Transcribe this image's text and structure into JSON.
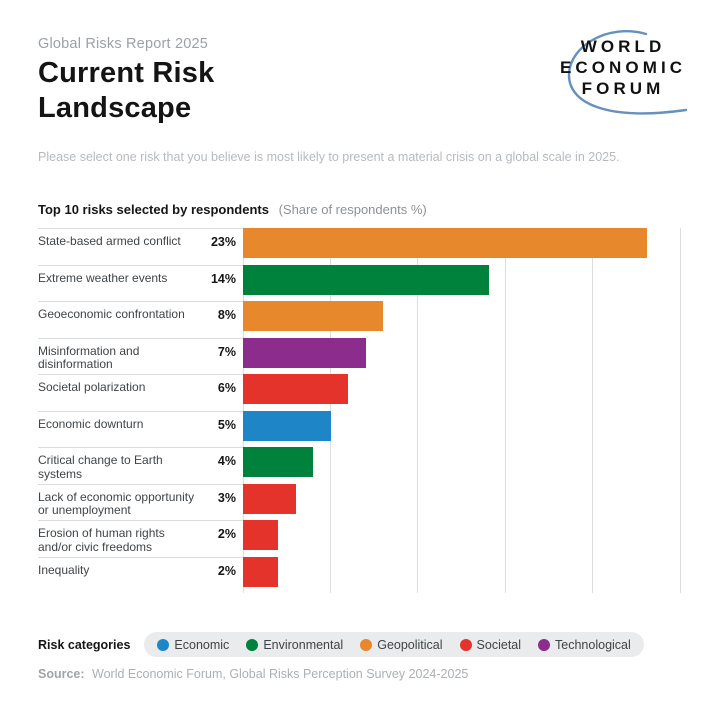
{
  "page": {
    "eyebrow": "Global Risks Report 2025",
    "title_line1": "Current Risk",
    "title_line2": "Landscape",
    "subtitle": "Please select one risk that you believe is most likely to present a material crisis on a global scale in 2025.",
    "logo": {
      "line1": "WORLD",
      "line2": "ECONOMIC",
      "line3": "FORUM",
      "arc_color": "#5585B5"
    },
    "source_label": "Source:",
    "source_text": "World Economic Forum, Global Risks Perception Survey 2024-2025"
  },
  "chart_header": {
    "title": "Top 10 risks selected by respondents",
    "subtitle": "(Share of respondents %)"
  },
  "legend": {
    "label": "Risk categories",
    "items": [
      {
        "name": "Economic",
        "color": "#1E86C6"
      },
      {
        "name": "Environmental",
        "color": "#00823C"
      },
      {
        "name": "Geopolitical",
        "color": "#E8882D"
      },
      {
        "name": "Societal",
        "color": "#E3332A"
      },
      {
        "name": "Technological",
        "color": "#8C2C8C"
      }
    ]
  },
  "chart_data": {
    "type": "bar",
    "orientation": "horizontal",
    "title": "Top 10 risks selected by respondents",
    "xlabel": "Share of respondents %",
    "xlim": [
      0,
      25
    ],
    "gridline_values": [
      0,
      5,
      10,
      15,
      20,
      25
    ],
    "grid": "on",
    "categories": [
      "State-based armed conflict",
      "Extreme weather events",
      "Geoeconomic confrontation",
      "Misinformation and\ndisinformation",
      "Societal polarization",
      "Economic downturn",
      "Critical change to Earth\nsystems",
      "Lack of economic opportunity\nor unemployment",
      "Erosion of human rights\nand/or civic freedoms",
      "Inequality"
    ],
    "values": [
      23,
      14,
      8,
      7,
      6,
      5,
      4,
      3,
      2,
      2
    ],
    "value_labels": [
      "23%",
      "14%",
      "8%",
      "7%",
      "6%",
      "5%",
      "4%",
      "3%",
      "2%",
      "2%"
    ],
    "risk_categories": [
      "Geopolitical",
      "Environmental",
      "Geopolitical",
      "Technological",
      "Societal",
      "Economic",
      "Environmental",
      "Societal",
      "Societal",
      "Societal"
    ]
  }
}
